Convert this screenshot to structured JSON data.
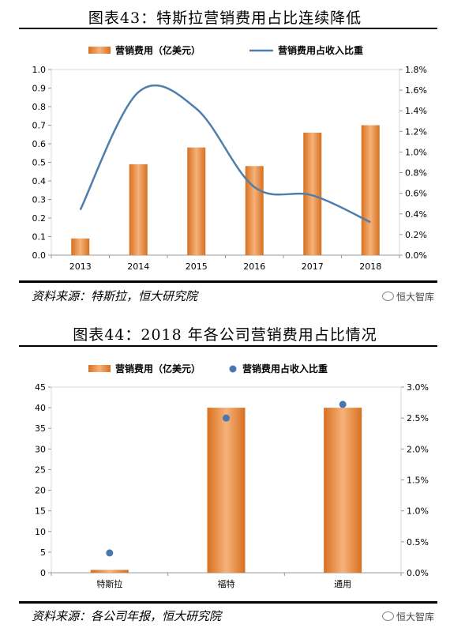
{
  "figure1": {
    "title": "图表43：特斯拉营销费用占比连续降低",
    "source": "资料来源：特斯拉，恒大研究院",
    "watermark": "恒大智库"
  },
  "figure2": {
    "title": "图表44：2018 年各公司营销费用占比情况",
    "source": "资料来源：各公司年报，恒大研究院",
    "watermark": "恒大智库"
  },
  "colors": {
    "bar": "#ee8a3c",
    "bar_dark": "#d7701f",
    "line": "#4f7eac",
    "dot": "#4a76b0"
  },
  "chart_data": [
    {
      "type": "bar+line",
      "title": "图表43：特斯拉营销费用占比连续降低",
      "categories": [
        "2013",
        "2014",
        "2015",
        "2016",
        "2017",
        "2018"
      ],
      "series": [
        {
          "name": "营销费用（亿美元）",
          "type": "bar",
          "axis": "left",
          "values": [
            0.09,
            0.49,
            0.58,
            0.48,
            0.66,
            0.7
          ]
        },
        {
          "name": "营销费用占收入比重",
          "type": "line",
          "axis": "right",
          "values": [
            0.0044,
            0.0158,
            0.0142,
            0.0066,
            0.0058,
            0.0032
          ]
        }
      ],
      "yleft": {
        "lim": [
          0,
          1.0
        ],
        "ticks": [
          "0.0",
          "0.1",
          "0.2",
          "0.3",
          "0.4",
          "0.5",
          "0.6",
          "0.7",
          "0.8",
          "0.9",
          "1.0"
        ]
      },
      "yright": {
        "lim": [
          0,
          0.018
        ],
        "ticks": [
          "0.0%",
          "0.2%",
          "0.4%",
          "0.6%",
          "0.8%",
          "1.0%",
          "1.2%",
          "1.4%",
          "1.6%",
          "1.8%"
        ]
      },
      "legend": "top"
    },
    {
      "type": "bar+scatter",
      "title": "图表44：2018 年各公司营销费用占比情况",
      "categories": [
        "特斯拉",
        "福特",
        "通用"
      ],
      "series": [
        {
          "name": "营销费用（亿美元）",
          "type": "bar",
          "axis": "left",
          "values": [
            0.7,
            40,
            40
          ]
        },
        {
          "name": "营销费用占收入比重",
          "type": "scatter",
          "axis": "right",
          "values": [
            0.0032,
            0.025,
            0.0272
          ]
        }
      ],
      "yleft": {
        "lim": [
          0,
          45
        ],
        "ticks": [
          "0",
          "5",
          "10",
          "15",
          "20",
          "25",
          "30",
          "35",
          "40",
          "45"
        ]
      },
      "yright": {
        "lim": [
          0,
          0.03
        ],
        "ticks": [
          "0.0%",
          "0.5%",
          "1.0%",
          "1.5%",
          "2.0%",
          "2.5%",
          "3.0%"
        ]
      },
      "legend": "top"
    }
  ]
}
